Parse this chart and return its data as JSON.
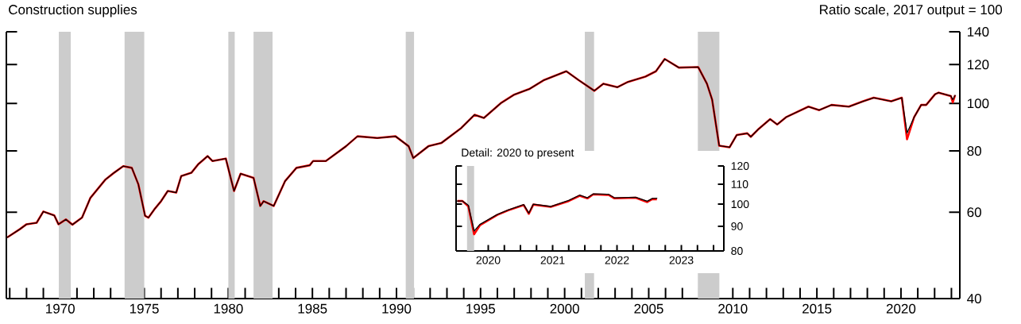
{
  "chart_data": [
    {
      "type": "line",
      "title": "Construction supplies",
      "ylabel": "Ratio scale, 2017 output = 100",
      "x": [
        1966.85,
        1967.6,
        1968.0,
        1968.6,
        1969.0,
        1969.65,
        1969.9,
        1970.34,
        1970.73,
        1971.3,
        1971.8,
        1972.7,
        1973.2,
        1973.75,
        1974.26,
        1974.65,
        1975.05,
        1975.25,
        1975.6,
        1976.0,
        1976.4,
        1976.9,
        1977.2,
        1977.8,
        1978.2,
        1978.77,
        1979.06,
        1979.85,
        1980.14,
        1980.34,
        1980.73,
        1981.5,
        1981.9,
        1982.1,
        1982.7,
        1983.37,
        1984.05,
        1984.84,
        1985.04,
        1985.8,
        1987.0,
        1987.68,
        1988.86,
        1989.94,
        1990.72,
        1991.0,
        1991.9,
        1992.68,
        1993.85,
        1994.64,
        1995.2,
        1996.2,
        1997.0,
        1997.9,
        1998.75,
        2000.1,
        2000.84,
        2001.77,
        2002.3,
        2003.13,
        2003.76,
        2004.8,
        2005.43,
        2005.95,
        2006.79,
        2007.94,
        2008.46,
        2008.77,
        2009.19,
        2009.81,
        2010.23,
        2010.86,
        2011.07,
        2011.49,
        2012.22,
        2012.64,
        2013.16,
        2014.5,
        2015.14,
        2015.87,
        2016.9,
        2017.75,
        2018.38,
        2019.42,
        2020.05,
        2020.36,
        2020.78,
        2021.2,
        2021.5,
        2022.03,
        2022.24,
        2022.97,
        2023.08,
        2023.22
      ],
      "series": [
        {
          "color": "#ff0000",
          "values": [
            53.3,
            55.4,
            56.7,
            57.1,
            60.2,
            59.1,
            56.7,
            58.0,
            56.6,
            58.5,
            64.2,
            70.0,
            72.2,
            74.5,
            73.9,
            68.4,
            59.0,
            58.5,
            60.8,
            63.2,
            66.3,
            65.8,
            71.1,
            72.2,
            75.1,
            78.1,
            76.3,
            77.2,
            70.5,
            66.3,
            71.9,
            70.5,
            61.8,
            63.2,
            61.8,
            69.4,
            73.9,
            74.8,
            76.3,
            76.3,
            81.8,
            85.7,
            85.0,
            85.7,
            81.8,
            77.4,
            81.8,
            83.1,
            89.1,
            94.8,
            93.4,
            100.1,
            104.2,
            107.0,
            111.5,
            116.3,
            111.5,
            106.1,
            109.7,
            107.9,
            110.6,
            113.4,
            116.3,
            123.2,
            118.3,
            118.6,
            109.7,
            101.8,
            82.0,
            81.4,
            86.2,
            86.9,
            85.5,
            88.4,
            92.9,
            90.6,
            93.7,
            98.5,
            96.9,
            99.3,
            98.5,
            101.0,
            102.7,
            101.0,
            102.7,
            84.5,
            93.7,
            99.3,
            99.3,
            104.4,
            105.2,
            103.5,
            100.5,
            103.9
          ]
        },
        {
          "color": "#000000",
          "values": [
            53.3,
            55.4,
            56.7,
            57.1,
            60.2,
            59.1,
            56.7,
            58.0,
            56.6,
            58.5,
            64.2,
            70.0,
            72.2,
            74.5,
            73.9,
            68.4,
            59.0,
            58.5,
            60.8,
            63.2,
            66.3,
            65.8,
            71.1,
            72.2,
            75.1,
            78.1,
            76.3,
            77.2,
            70.5,
            66.3,
            71.9,
            70.5,
            61.8,
            63.2,
            61.8,
            69.4,
            73.9,
            74.8,
            76.3,
            76.3,
            81.8,
            85.7,
            85.0,
            85.7,
            81.8,
            77.4,
            81.8,
            83.1,
            89.1,
            94.8,
            93.4,
            100.1,
            104.2,
            107.0,
            111.5,
            116.3,
            111.5,
            106.1,
            109.7,
            107.9,
            110.6,
            113.4,
            116.3,
            123.2,
            118.3,
            118.6,
            109.7,
            101.8,
            82.0,
            81.4,
            86.2,
            86.9,
            85.5,
            88.4,
            92.9,
            90.6,
            93.7,
            98.5,
            96.9,
            99.3,
            98.5,
            101.0,
            102.7,
            101.0,
            102.7,
            87.0,
            93.7,
            99.3,
            99.3,
            104.4,
            105.2,
            103.5,
            101.8,
            103.9
          ]
        }
      ],
      "xlim": [
        1966.8,
        2023.5
      ],
      "xticks": [
        {
          "value": 1967,
          "label": null
        },
        {
          "value": 1968,
          "label": null
        },
        {
          "value": 1969,
          "label": null
        },
        1970,
        {
          "value": 1971,
          "label": null
        },
        {
          "value": 1972,
          "label": null
        },
        {
          "value": 1973,
          "label": null
        },
        {
          "value": 1974,
          "label": null
        },
        1975,
        {
          "value": 1976,
          "label": null
        },
        {
          "value": 1977,
          "label": null
        },
        {
          "value": 1978,
          "label": null
        },
        {
          "value": 1979,
          "label": null
        },
        1980,
        {
          "value": 1981,
          "label": null
        },
        {
          "value": 1982,
          "label": null
        },
        {
          "value": 1983,
          "label": null
        },
        {
          "value": 1984,
          "label": null
        },
        1985,
        {
          "value": 1986,
          "label": null
        },
        {
          "value": 1987,
          "label": null
        },
        {
          "value": 1988,
          "label": null
        },
        {
          "value": 1989,
          "label": null
        },
        1990,
        {
          "value": 1991,
          "label": null
        },
        {
          "value": 1992,
          "label": null
        },
        {
          "value": 1993,
          "label": null
        },
        {
          "value": 1994,
          "label": null
        },
        1995,
        {
          "value": 1996,
          "label": null
        },
        {
          "value": 1997,
          "label": null
        },
        {
          "value": 1998,
          "label": null
        },
        {
          "value": 1999,
          "label": null
        },
        2000,
        {
          "value": 2001,
          "label": null
        },
        {
          "value": 2002,
          "label": null
        },
        {
          "value": 2003,
          "label": null
        },
        {
          "value": 2004,
          "label": null
        },
        2005,
        {
          "value": 2006,
          "label": null
        },
        {
          "value": 2007,
          "label": null
        },
        {
          "value": 2008,
          "label": null
        },
        {
          "value": 2009,
          "label": null
        },
        2010,
        {
          "value": 2011,
          "label": null
        },
        {
          "value": 2012,
          "label": null
        },
        {
          "value": 2013,
          "label": null
        },
        {
          "value": 2014,
          "label": null
        },
        2015,
        {
          "value": 2016,
          "label": null
        },
        {
          "value": 2017,
          "label": null
        },
        {
          "value": 2018,
          "label": null
        },
        {
          "value": 2019,
          "label": null
        },
        2020,
        {
          "value": 2021,
          "label": null
        },
        {
          "value": 2022,
          "label": null
        },
        {
          "value": 2023,
          "label": null
        }
      ],
      "ylim": [
        40,
        140
      ],
      "yticks": [
        40,
        60,
        80,
        100,
        120,
        140
      ],
      "log": "y",
      "bands": [
        {
          "axis": "x",
          "from": 1969.92,
          "to": 1970.63,
          "color": "#cccccc"
        },
        {
          "axis": "x",
          "from": 1973.83,
          "to": 1975.0,
          "color": "#cccccc"
        },
        {
          "axis": "x",
          "from": 1980.0,
          "to": 1980.38,
          "color": "#cccccc"
        },
        {
          "axis": "x",
          "from": 1981.5,
          "to": 1982.63,
          "color": "#cccccc"
        },
        {
          "axis": "x",
          "from": 1990.55,
          "to": 1991.05,
          "color": "#cccccc"
        },
        {
          "axis": "x",
          "from": 2001.2,
          "to": 2001.75,
          "color": "#cccccc"
        },
        {
          "axis": "x",
          "from": 2007.92,
          "to": 2009.2,
          "color": "#cccccc"
        }
      ]
    },
    {
      "type": "line",
      "title": "Detail: 2020 to present",
      "x": [
        2020.02,
        2020.1,
        2020.19,
        2020.28,
        2020.37,
        2020.64,
        2020.81,
        2021.05,
        2021.13,
        2021.2,
        2021.47,
        2021.75,
        2021.92,
        2022.04,
        2022.13,
        2022.37,
        2022.46,
        2022.79,
        2022.97,
        2023.05,
        2023.12
      ],
      "series": [
        {
          "color": "#ff0000",
          "values": [
            101.5,
            101.5,
            99.0,
            86.6,
            90.4,
            95.0,
            97.1,
            99.6,
            95.5,
            99.8,
            98.7,
            101.5,
            104.1,
            102.8,
            104.8,
            104.5,
            102.8,
            103.1,
            101.0,
            102.5,
            102.4
          ]
        },
        {
          "color": "#000000",
          "values": [
            101.5,
            101.5,
            99.5,
            88.0,
            90.8,
            95.2,
            97.3,
            99.8,
            95.8,
            100.0,
            98.9,
            101.8,
            104.4,
            103.1,
            105.0,
            104.8,
            103.1,
            103.4,
            101.4,
            102.8,
            102.9
          ]
        }
      ],
      "xlim": [
        2020.0,
        2024.16
      ],
      "xticks": [
        {
          "value": 2020.25,
          "label": null
        },
        {
          "value": 2020.5,
          "label": "2020"
        },
        {
          "value": 2020.75,
          "label": null
        },
        {
          "value": 2021,
          "label": null
        },
        {
          "value": 2021.25,
          "label": null
        },
        {
          "value": 2021.5,
          "label": "2021"
        },
        {
          "value": 2021.75,
          "label": null
        },
        {
          "value": 2022,
          "label": null
        },
        {
          "value": 2022.25,
          "label": null
        },
        {
          "value": 2022.5,
          "label": "2022"
        },
        {
          "value": 2022.75,
          "label": null
        },
        {
          "value": 2023,
          "label": null
        },
        {
          "value": 2023.25,
          "label": null
        },
        {
          "value": 2023.5,
          "label": "2023"
        },
        {
          "value": 2023.75,
          "label": null
        },
        {
          "value": 2024,
          "label": null
        }
      ],
      "ylim": [
        80,
        120
      ],
      "yticks": [
        80,
        90,
        100,
        110,
        120
      ],
      "log": "y",
      "bands": [
        {
          "axis": "x",
          "from": 2020.17,
          "to": 2020.28,
          "color": "#cccccc"
        }
      ]
    }
  ]
}
